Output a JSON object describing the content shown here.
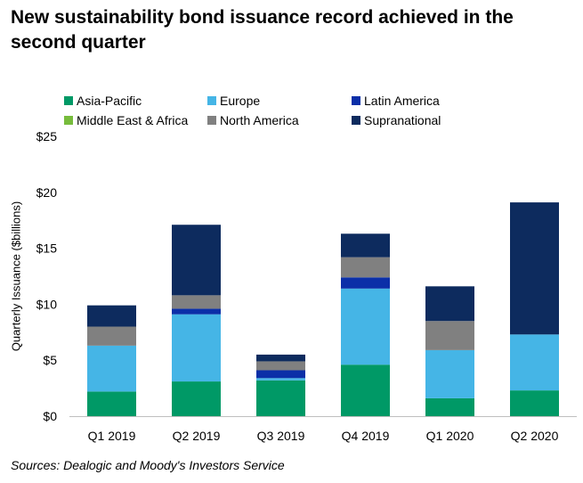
{
  "title": "New sustainability bond issuance record achieved in the second quarter",
  "source": "Sources: Dealogic and Moody's Investors Service",
  "chart_data": {
    "type": "bar",
    "stacked": true,
    "categories": [
      "Q1 2019",
      "Q2 2019",
      "Q3 2019",
      "Q4 2019",
      "Q1 2020",
      "Q2 2020"
    ],
    "series": [
      {
        "name": "Asia-Pacific",
        "color": "#009966",
        "values": [
          2.2,
          3.1,
          3.2,
          4.6,
          1.6,
          2.3
        ]
      },
      {
        "name": "Europe",
        "color": "#45b5e6",
        "values": [
          4.1,
          6.0,
          0.2,
          6.8,
          4.3,
          5.0
        ]
      },
      {
        "name": "Latin America",
        "color": "#0b2fa8",
        "values": [
          0.0,
          0.5,
          0.7,
          1.0,
          0.0,
          0.0
        ]
      },
      {
        "name": "Middle East & Africa",
        "color": "#77bc3c",
        "values": [
          0.0,
          0.0,
          0.0,
          0.0,
          0.0,
          0.0
        ]
      },
      {
        "name": "North America",
        "color": "#808080",
        "values": [
          1.7,
          1.2,
          0.8,
          1.8,
          2.6,
          0.0
        ]
      },
      {
        "name": "Supranational",
        "color": "#0d2b5e",
        "values": [
          1.9,
          6.3,
          0.6,
          2.1,
          3.1,
          11.8
        ]
      }
    ],
    "ylabel": "Quarterly Issuance ($billions)",
    "xlabel": "",
    "ylim": [
      0,
      25
    ],
    "yticks": [
      "$0",
      "$5",
      "$10",
      "$15",
      "$20",
      "$25"
    ],
    "grid": false,
    "legend_position": "top"
  }
}
